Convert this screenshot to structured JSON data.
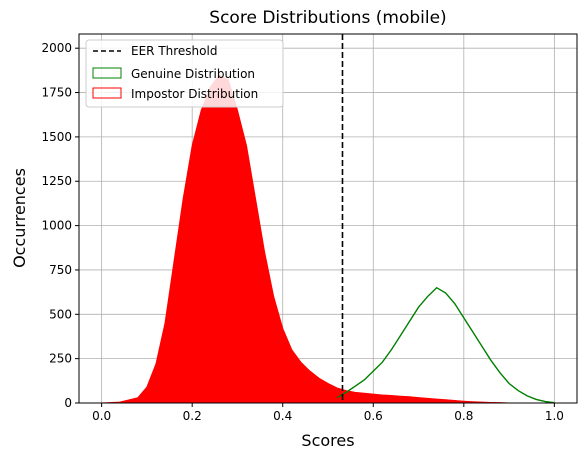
{
  "chart_data": {
    "type": "histogram",
    "title": "Score Distributions (mobile)",
    "xlabel": "Scores",
    "ylabel": "Occurrences",
    "xlim": [
      -0.05,
      1.05
    ],
    "ylim": [
      0,
      2080
    ],
    "xticks": [
      0.0,
      0.2,
      0.4,
      0.6,
      0.8,
      1.0
    ],
    "xtick_labels": [
      "0.0",
      "0.2",
      "0.4",
      "0.6",
      "0.8",
      "1.0"
    ],
    "yticks": [
      0,
      250,
      500,
      750,
      1000,
      1250,
      1500,
      1750,
      2000
    ],
    "ytick_labels": [
      "0",
      "250",
      "500",
      "750",
      "1000",
      "1250",
      "1500",
      "1750",
      "2000"
    ],
    "grid": true,
    "legend_position": "top-left",
    "threshold": {
      "name": "EER Threshold",
      "x": 0.532,
      "color": "#000000",
      "style": "dashed"
    },
    "series": [
      {
        "name": "Genuine Distribution",
        "color": "#008000",
        "fill": false,
        "x": [
          0.52,
          0.54,
          0.56,
          0.58,
          0.6,
          0.62,
          0.64,
          0.66,
          0.68,
          0.7,
          0.72,
          0.74,
          0.76,
          0.78,
          0.8,
          0.82,
          0.84,
          0.86,
          0.88,
          0.9,
          0.92,
          0.94,
          0.96,
          0.98,
          1.0
        ],
        "y": [
          30,
          60,
          95,
          130,
          180,
          230,
          300,
          380,
          460,
          540,
          600,
          650,
          620,
          560,
          480,
          400,
          320,
          240,
          170,
          110,
          70,
          40,
          20,
          8,
          2
        ]
      },
      {
        "name": "Impostor Distribution",
        "color": "#ff0000",
        "fill": true,
        "x": [
          0.0,
          0.04,
          0.08,
          0.1,
          0.12,
          0.14,
          0.16,
          0.18,
          0.2,
          0.22,
          0.24,
          0.26,
          0.28,
          0.3,
          0.32,
          0.34,
          0.36,
          0.38,
          0.4,
          0.42,
          0.44,
          0.46,
          0.48,
          0.5,
          0.52,
          0.54,
          0.56,
          0.58,
          0.6,
          0.62,
          0.64,
          0.66,
          0.68,
          0.7,
          0.72,
          0.74,
          0.76,
          0.78,
          0.8,
          0.82,
          0.84,
          0.86,
          0.88,
          0.9
        ],
        "y": [
          0,
          5,
          30,
          90,
          220,
          450,
          800,
          1150,
          1450,
          1650,
          1780,
          1850,
          1820,
          1650,
          1450,
          1150,
          850,
          600,
          420,
          300,
          230,
          180,
          140,
          110,
          85,
          70,
          60,
          55,
          50,
          45,
          42,
          38,
          35,
          30,
          26,
          22,
          18,
          14,
          10,
          7,
          5,
          3,
          2,
          0
        ]
      }
    ]
  }
}
